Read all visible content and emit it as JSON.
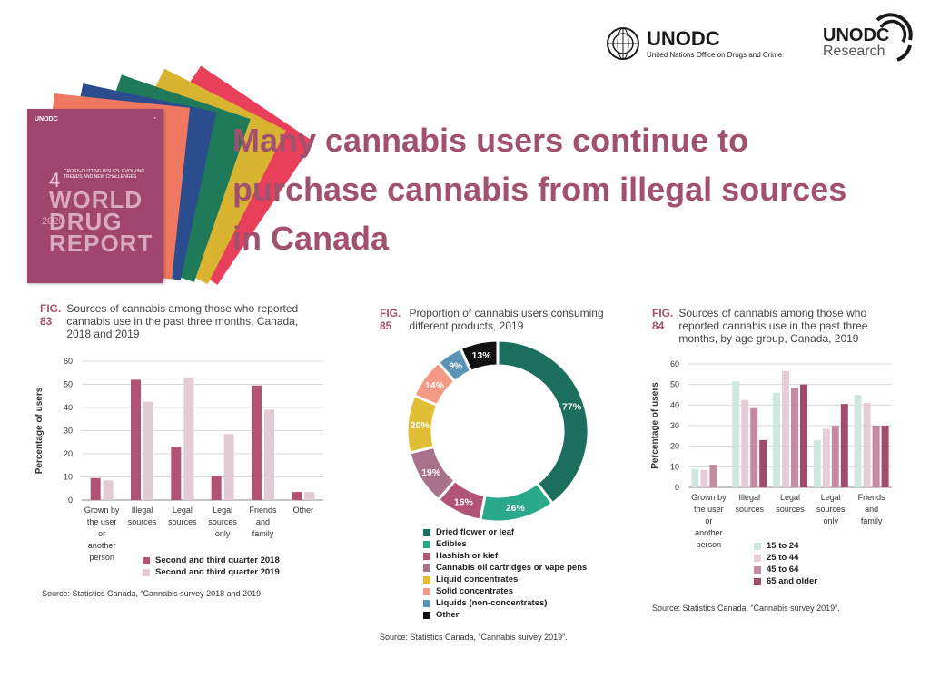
{
  "title": "Many cannabis users continue to purchase cannabis from illegal sources in  Canada",
  "report_cover": {
    "org": "UNODC",
    "chapter_number": "4",
    "chapter_title": "CROSS-CUTTING ISSUES: EVOLVING TRENDS AND NEW CHALLENGES",
    "name": "WORLD DRUG REPORT",
    "year": "2020",
    "spine_colors": [
      "#e8405a",
      "#d9b431",
      "#1f7a5a",
      "#2b4d8e",
      "#f07860",
      "#a0466c"
    ]
  },
  "logos": {
    "unodc_main": "UNODC",
    "unodc_tagline": "United Nations Office on Drugs and Crime",
    "unodc_research_1": "UNODC",
    "unodc_research_2": "Research"
  },
  "colors": {
    "accent": "#a1516f",
    "series_2018": "#b05375",
    "series_2019": "#e3cbd6"
  },
  "fig83": {
    "fig_label": "FIG. 83",
    "caption": "Sources of cannabis among those who reported cannabis use in the past three months, Canada, 2018 and 2019",
    "source": "Source: Statistics Canada, “Cannabis survey 2018 and 2019",
    "legend": [
      "Second and third quarter 2018",
      "Second and third quarter 2019"
    ]
  },
  "fig85": {
    "fig_label": "FIG. 85",
    "caption": "Proportion of cannabis users consuming different products, 2019",
    "source": "Source: Statistics Canada, “Cannabis survey 2019”."
  },
  "fig84": {
    "fig_label": "FIG. 84",
    "caption": "Sources of cannabis among those who reported cannabis use in the past three months, by age group, Canada, 2019",
    "source": "Source: Statistics Canada, “Cannabis survey 2019”.",
    "legend": [
      "15 to 24",
      "25 to 44",
      "45 to 64",
      "65 and older"
    ]
  },
  "chart_data": [
    {
      "type": "bar",
      "ylabel": "Percentage of users",
      "ylim": [
        0,
        60
      ],
      "yticks": [
        0,
        10,
        20,
        30,
        40,
        50,
        60
      ],
      "grid": true,
      "legend_position": "bottom",
      "categories": [
        [
          "Grown by",
          "the user",
          "or",
          "another",
          "person"
        ],
        [
          "Illegal",
          "sources"
        ],
        [
          "Legal",
          "sources"
        ],
        [
          "Legal",
          "sources",
          "only"
        ],
        [
          "Friends",
          "and",
          "family"
        ],
        [
          "Other"
        ]
      ],
      "series": [
        {
          "name": "Second and third quarter 2018",
          "color": "#b05375",
          "values": [
            9.5,
            52,
            23,
            10.5,
            49.5,
            3.5
          ]
        },
        {
          "name": "Second and third quarter 2019",
          "color": "#e3cbd6",
          "values": [
            8.5,
            42.5,
            53,
            28.5,
            39,
            3.5
          ]
        }
      ]
    },
    {
      "type": "pie",
      "donut": true,
      "legend_position": "bottom",
      "labels": [
        "Dried flower or leaf",
        "Edibles",
        "Hashish or kief",
        "Cannabis oil cartridges or vape pens",
        "Liquid concentrates",
        "Solid concentrates",
        "Liquids (non-concentrates)",
        "Other"
      ],
      "legend_colors": [
        "#1c6e5e",
        "#2aa98a",
        "#b05375",
        "#a8738a",
        "#e0bf37",
        "#f29a86",
        "#5a93b5",
        "#111111"
      ],
      "slices": [
        {
          "value": 77,
          "label": "77%",
          "color": "#1c6e5e"
        },
        {
          "value": 26,
          "label": "26%",
          "color": "#2aa98a"
        },
        {
          "value": 16,
          "label": "16%",
          "color": "#b05375"
        },
        {
          "value": 19,
          "label": "19%",
          "color": "#a8738a"
        },
        {
          "value": 20,
          "label": "20%",
          "color": "#e0bf37"
        },
        {
          "value": 14,
          "label": "14%",
          "color": "#f29a86"
        },
        {
          "value": 9,
          "label": "9%",
          "color": "#5a93b5"
        },
        {
          "value": 13,
          "label": "13%",
          "color": "#111111"
        }
      ]
    },
    {
      "type": "bar",
      "ylabel": "Percentage of users",
      "ylim": [
        0,
        60
      ],
      "yticks": [
        0,
        10,
        20,
        30,
        40,
        50,
        60
      ],
      "grid": true,
      "legend_position": "bottom-right",
      "categories": [
        [
          "Grown by",
          "the user",
          "or",
          "another",
          "person"
        ],
        [
          "Illegal",
          "sources"
        ],
        [
          "Legal",
          "sources"
        ],
        [
          "Legal",
          "sources",
          "only"
        ],
        [
          "Friends",
          "and",
          "family"
        ]
      ],
      "series": [
        {
          "name": "15 to 24",
          "color": "#cfe8df",
          "values": [
            9,
            51.5,
            46,
            23,
            45
          ]
        },
        {
          "name": "25 to 44",
          "color": "#e6ccd7",
          "values": [
            8.5,
            42.5,
            56.5,
            28.5,
            41
          ]
        },
        {
          "name": "45 to 64",
          "color": "#c48aa1",
          "values": [
            11,
            38.5,
            48.5,
            30,
            30
          ]
        },
        {
          "name": "65 and older",
          "color": "#a24a6c",
          "values": [
            0,
            23,
            50,
            40.5,
            30
          ]
        }
      ]
    }
  ]
}
